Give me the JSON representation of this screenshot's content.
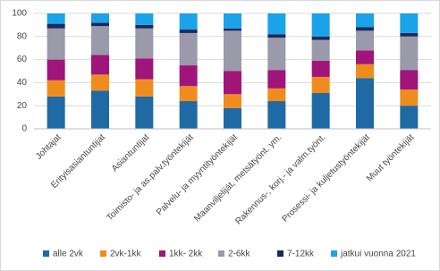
{
  "chart_data": {
    "type": "stacked-bar",
    "categories": [
      "Johtajat",
      "Erityisasiantuntijat",
      "Asiantuntijat",
      "Toimisto- ja as.palv.työntekijät",
      "Palvelu- ja myyntityöntekijät",
      "Maanviljelijät, metsätyönt. ym.",
      "Rakennus-, korj.- ja valm.työnt.",
      "Prosessi- ja kuljetustyöntekijät",
      "Muut työntekijät"
    ],
    "series": [
      {
        "name": "alle 2vk",
        "color": "#1f6aa5",
        "values": [
          28,
          33,
          28,
          24,
          18,
          24,
          31,
          44,
          20
        ]
      },
      {
        "name": "2vk-1kk",
        "color": "#f08c1e",
        "values": [
          14,
          14,
          15,
          13,
          12,
          11,
          14,
          12,
          14
        ]
      },
      {
        "name": "1kk- 2kk",
        "color": "#a0157a",
        "values": [
          18,
          17,
          18,
          18,
          20,
          16,
          14,
          12,
          17
        ]
      },
      {
        "name": "2-6kk",
        "color": "#9a9aaa",
        "values": [
          27,
          25,
          26,
          28,
          35,
          28,
          18,
          17,
          29
        ]
      },
      {
        "name": "7-12kk",
        "color": "#1a2a5e",
        "values": [
          4,
          3,
          3,
          3,
          2,
          3,
          3,
          3,
          3
        ]
      },
      {
        "name": "jatkui vuonna 2021",
        "color": "#1aa3e8",
        "values": [
          9,
          8,
          10,
          14,
          13,
          18,
          20,
          12,
          17
        ]
      }
    ],
    "ylim": [
      0,
      100
    ],
    "yticks": [
      0,
      20,
      40,
      60,
      80,
      100
    ],
    "grid": true,
    "legend": "bottom"
  }
}
